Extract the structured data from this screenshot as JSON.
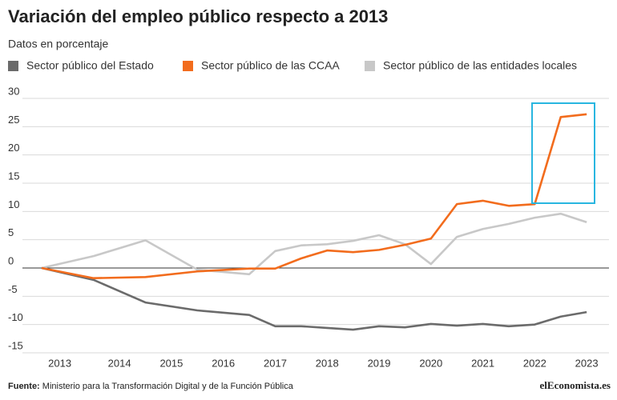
{
  "chart_data": {
    "type": "line",
    "title": "Variación del empleo público respecto a 2013",
    "subtitle": "Datos en porcentaje",
    "source_label": "Fuente:",
    "source": "Ministerio para la Transformación Digital y de la Función Pública",
    "brand": "elEconomista.es",
    "x": [
      2013,
      2014,
      2015,
      2016,
      2017,
      2017.5,
      2018,
      2018.5,
      2019,
      2019.5,
      2020,
      2020.5,
      2021,
      2021.5,
      2022,
      2022.5,
      2023,
      2023.5
    ],
    "series": [
      {
        "name": "Sector público del Estado",
        "color": "#6b6b6b",
        "values": [
          0,
          -2.1,
          -6.1,
          -7.5,
          -8.3,
          -10.3,
          -10.3,
          -10.6,
          -10.9,
          -10.3,
          -10.5,
          -9.9,
          -10.2,
          -9.9,
          -10.3,
          -10.0,
          -8.6,
          -7.8
        ]
      },
      {
        "name": "Sector público de las CCAA",
        "color": "#f26c1d",
        "values": [
          0,
          -1.8,
          -1.6,
          -0.6,
          -0.1,
          -0.1,
          1.7,
          3.1,
          2.8,
          3.2,
          4.1,
          5.2,
          11.3,
          11.9,
          11.0,
          11.3,
          26.7,
          27.2
        ]
      },
      {
        "name": "Sector público de las entidades locales",
        "color": "#c8c8c8",
        "values": [
          0,
          2.1,
          4.9,
          -0.3,
          -1.1,
          3.0,
          4.0,
          4.2,
          4.8,
          5.8,
          4.2,
          0.7,
          5.5,
          6.9,
          7.8,
          8.9,
          9.6,
          8.1
        ]
      }
    ],
    "xlim": [
      2012.63,
      2023.93
    ],
    "xticks": [
      {
        "value": 2013.35,
        "label": "2013"
      },
      {
        "value": 2014.5,
        "label": "2014"
      },
      {
        "value": 2015.5,
        "label": "2015"
      },
      {
        "value": 2016.5,
        "label": "2016"
      },
      {
        "value": 2017.5,
        "label": "2017"
      },
      {
        "value": 2018.5,
        "label": "2018"
      },
      {
        "value": 2019.5,
        "label": "2019"
      },
      {
        "value": 2020.5,
        "label": "2020"
      },
      {
        "value": 2021.5,
        "label": "2021"
      },
      {
        "value": 2022.5,
        "label": "2022"
      },
      {
        "value": 2023.5,
        "label": "2023"
      }
    ],
    "ylim": [
      -15,
      30
    ],
    "yticks": [
      -15,
      -10,
      -5,
      0,
      5,
      10,
      15,
      20,
      25,
      30
    ],
    "grid": true
  }
}
